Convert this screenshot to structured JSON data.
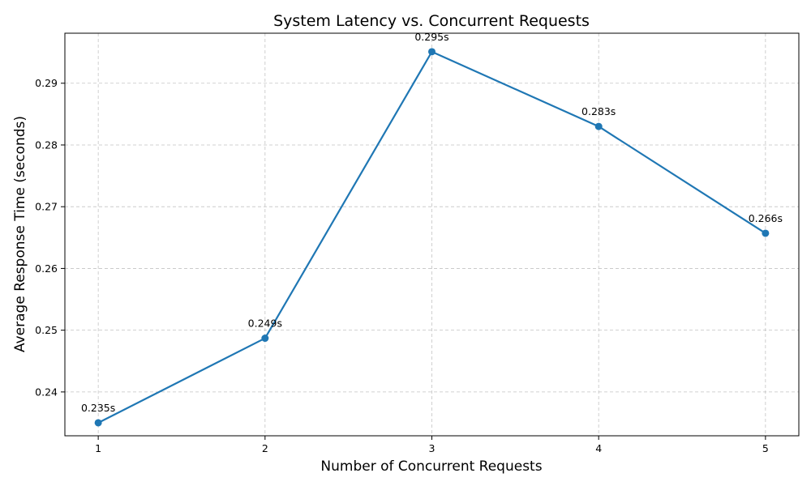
{
  "chart_data": {
    "type": "line",
    "title": "System Latency vs. Concurrent Requests",
    "xlabel": "Number of Concurrent Requests",
    "ylabel": "Average Response Time (seconds)",
    "x": [
      1,
      2,
      3,
      4,
      5
    ],
    "x_tick_labels": [
      "1",
      "2",
      "3",
      "4",
      "5"
    ],
    "xlim": [
      0.8,
      5.2
    ],
    "ylim": [
      0.2329,
      0.2981
    ],
    "y_ticks": [
      0.24,
      0.25,
      0.26,
      0.27,
      0.28,
      0.29
    ],
    "y_tick_labels": [
      "0.24",
      "0.25",
      "0.26",
      "0.27",
      "0.28",
      "0.29"
    ],
    "grid": true,
    "series": [
      {
        "values": [
          0.235,
          0.2487,
          0.2951,
          0.283,
          0.2657
        ],
        "data_labels": [
          "0.235s",
          "0.249s",
          "0.295s",
          "0.283s",
          "0.266s"
        ],
        "color": "#1f77b4"
      }
    ]
  }
}
